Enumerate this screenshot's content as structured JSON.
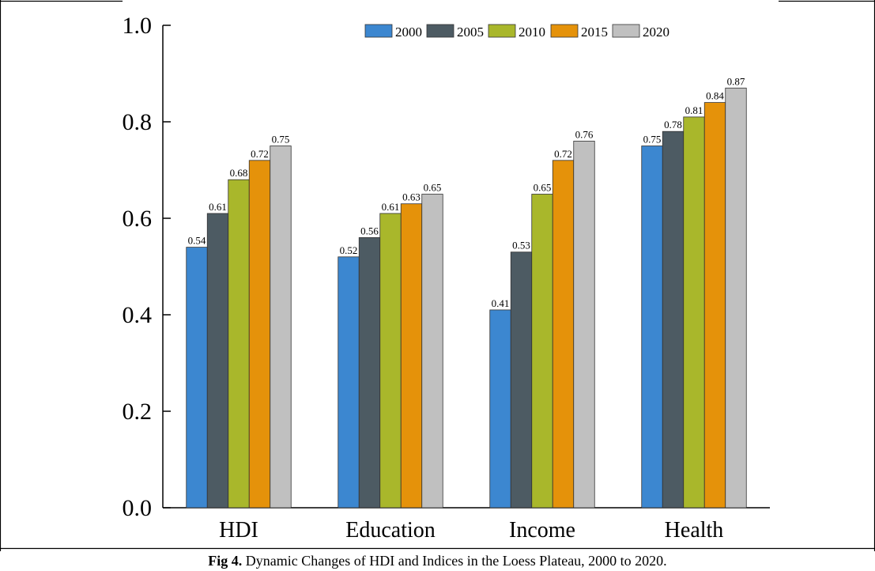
{
  "chart_data": {
    "type": "bar",
    "categories": [
      "HDI",
      "Education",
      "Income",
      "Health"
    ],
    "series": [
      {
        "name": "2000",
        "color": "#3c87d0",
        "values": [
          0.54,
          0.52,
          0.41,
          0.75
        ]
      },
      {
        "name": "2005",
        "color": "#4d5b63",
        "values": [
          0.61,
          0.56,
          0.53,
          0.78
        ]
      },
      {
        "name": "2010",
        "color": "#a9b72b",
        "values": [
          0.68,
          0.61,
          0.65,
          0.81
        ]
      },
      {
        "name": "2015",
        "color": "#e5920a",
        "values": [
          0.72,
          0.63,
          0.72,
          0.84
        ]
      },
      {
        "name": "2020",
        "color": "#c0c0c0",
        "values": [
          0.75,
          0.65,
          0.76,
          0.87
        ]
      }
    ],
    "value_labels": [
      [
        "0.54",
        "0.61",
        "0.68",
        "0.72",
        "0.75"
      ],
      [
        "0.52",
        "0.56",
        "0.61",
        "0.63",
        "0.65"
      ],
      [
        "0.41",
        "0.53",
        "0.65",
        "0.72",
        "0.76"
      ],
      [
        "0.75",
        "0.78",
        "0.81",
        "0.84",
        "0.87"
      ]
    ],
    "ylim": [
      0,
      1.0
    ],
    "yticks": [
      "0.0",
      "0.2",
      "0.4",
      "0.6",
      "0.8",
      "1.0"
    ],
    "xlabel": "",
    "ylabel": "",
    "grid": false,
    "legend_position": "top-right"
  },
  "caption": {
    "label": "Fig 4.",
    "text": " Dynamic Changes of HDI and Indices in the Loess Plateau, 2000 to 2020."
  }
}
